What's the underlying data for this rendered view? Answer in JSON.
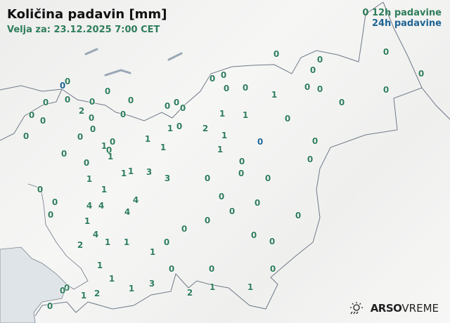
{
  "header": {
    "title": "Količina padavin [mm]",
    "valid_for": "Velja za: 23.12.2025 7:00 CET"
  },
  "legend": {
    "sample_value": "0",
    "h12_label": "12h padavine",
    "h24_label": "24h padavine",
    "h12_color": "#2e7d5b",
    "h24_color": "#1f6494"
  },
  "brand": {
    "icon": "sun-rain-icon",
    "name_bold": "ARSO",
    "name_light": "VREME"
  },
  "stations": [
    {
      "v": "0",
      "t": "12h"
    },
    {
      "v": "0",
      "t": "12h"
    },
    {
      "v": "0",
      "t": "12h"
    },
    {
      "v": "0",
      "t": "12h"
    },
    {
      "v": "0",
      "t": "12h"
    },
    {
      "v": "0",
      "t": "12h"
    },
    {
      "v": "0",
      "t": "12h"
    },
    {
      "v": "0",
      "t": "12h"
    },
    {
      "v": "0",
      "t": "24h"
    },
    {
      "v": "0",
      "t": "12h"
    },
    {
      "v": "0",
      "t": "12h"
    },
    {
      "v": "1",
      "t": "12h"
    },
    {
      "v": "0",
      "t": "12h"
    },
    {
      "v": "0",
      "t": "12h"
    },
    {
      "v": "0",
      "t": "12h"
    },
    {
      "v": "0",
      "t": "12h"
    },
    {
      "v": "0",
      "t": "12h"
    },
    {
      "v": "0",
      "t": "12h"
    },
    {
      "v": "0",
      "t": "12h"
    },
    {
      "v": "0",
      "t": "12h"
    },
    {
      "v": "0",
      "t": "12h"
    },
    {
      "v": "0",
      "t": "12h"
    },
    {
      "v": "0",
      "t": "12h"
    },
    {
      "v": "0",
      "t": "12h"
    },
    {
      "v": "2",
      "t": "12h"
    },
    {
      "v": "0",
      "t": "12h"
    },
    {
      "v": "0",
      "t": "12h"
    },
    {
      "v": "0",
      "t": "12h"
    },
    {
      "v": "0",
      "t": "12h"
    },
    {
      "v": "1",
      "t": "12h"
    },
    {
      "v": "1",
      "t": "12h"
    },
    {
      "v": "0",
      "t": "12h"
    },
    {
      "v": "1",
      "t": "12h"
    },
    {
      "v": "0",
      "t": "12h"
    },
    {
      "v": "2",
      "t": "12h"
    },
    {
      "v": "0",
      "t": "12h"
    },
    {
      "v": "0",
      "t": "12h"
    },
    {
      "v": "0",
      "t": "12h"
    },
    {
      "v": "1",
      "t": "12h"
    },
    {
      "v": "0",
      "t": "24h"
    },
    {
      "v": "0",
      "t": "12h"
    },
    {
      "v": "1",
      "t": "12h"
    },
    {
      "v": "1",
      "t": "12h"
    },
    {
      "v": "1",
      "t": "12h"
    },
    {
      "v": "0",
      "t": "12h"
    },
    {
      "v": "0",
      "t": "12h"
    },
    {
      "v": "1",
      "t": "12h"
    },
    {
      "v": "1",
      "t": "12h"
    },
    {
      "v": "0",
      "t": "12h"
    },
    {
      "v": "0",
      "t": "12h"
    },
    {
      "v": "0",
      "t": "12h"
    },
    {
      "v": "0",
      "t": "12h"
    },
    {
      "v": "1",
      "t": "12h"
    },
    {
      "v": "1",
      "t": "12h"
    },
    {
      "v": "3",
      "t": "12h"
    },
    {
      "v": "3",
      "t": "12h"
    },
    {
      "v": "0",
      "t": "12h"
    },
    {
      "v": "0",
      "t": "12h"
    },
    {
      "v": "0",
      "t": "12h"
    },
    {
      "v": "1",
      "t": "12h"
    },
    {
      "v": "0",
      "t": "12h"
    },
    {
      "v": "1",
      "t": "12h"
    },
    {
      "v": "0",
      "t": "12h"
    },
    {
      "v": "0",
      "t": "12h"
    },
    {
      "v": "0",
      "t": "12h"
    },
    {
      "v": "4",
      "t": "12h"
    },
    {
      "v": "4",
      "t": "12h"
    },
    {
      "v": "4",
      "t": "12h"
    },
    {
      "v": "0",
      "t": "12h"
    },
    {
      "v": "4",
      "t": "12h"
    },
    {
      "v": "0",
      "t": "12h"
    },
    {
      "v": "0",
      "t": "12h"
    },
    {
      "v": "1",
      "t": "12h"
    },
    {
      "v": "0",
      "t": "12h"
    },
    {
      "v": "0",
      "t": "12h"
    },
    {
      "v": "4",
      "t": "12h"
    },
    {
      "v": "1",
      "t": "12h"
    },
    {
      "v": "1",
      "t": "12h"
    },
    {
      "v": "0",
      "t": "12h"
    },
    {
      "v": "0",
      "t": "12h"
    },
    {
      "v": "2",
      "t": "12h"
    },
    {
      "v": "0",
      "t": "12h"
    },
    {
      "v": "1",
      "t": "12h"
    },
    {
      "v": "1",
      "t": "12h"
    },
    {
      "v": "0",
      "t": "12h"
    },
    {
      "v": "0",
      "t": "12h"
    },
    {
      "v": "0",
      "t": "12h"
    },
    {
      "v": "1",
      "t": "12h"
    },
    {
      "v": "0",
      "t": "12h"
    },
    {
      "v": "0",
      "t": "12h"
    },
    {
      "v": "3",
      "t": "12h"
    },
    {
      "v": "1",
      "t": "12h"
    },
    {
      "v": "2",
      "t": "12h"
    },
    {
      "v": "1",
      "t": "12h"
    },
    {
      "v": "2",
      "t": "12h"
    },
    {
      "v": "1",
      "t": "12h"
    },
    {
      "v": "1",
      "t": "12h"
    },
    {
      "v": "0",
      "t": "12h"
    }
  ]
}
